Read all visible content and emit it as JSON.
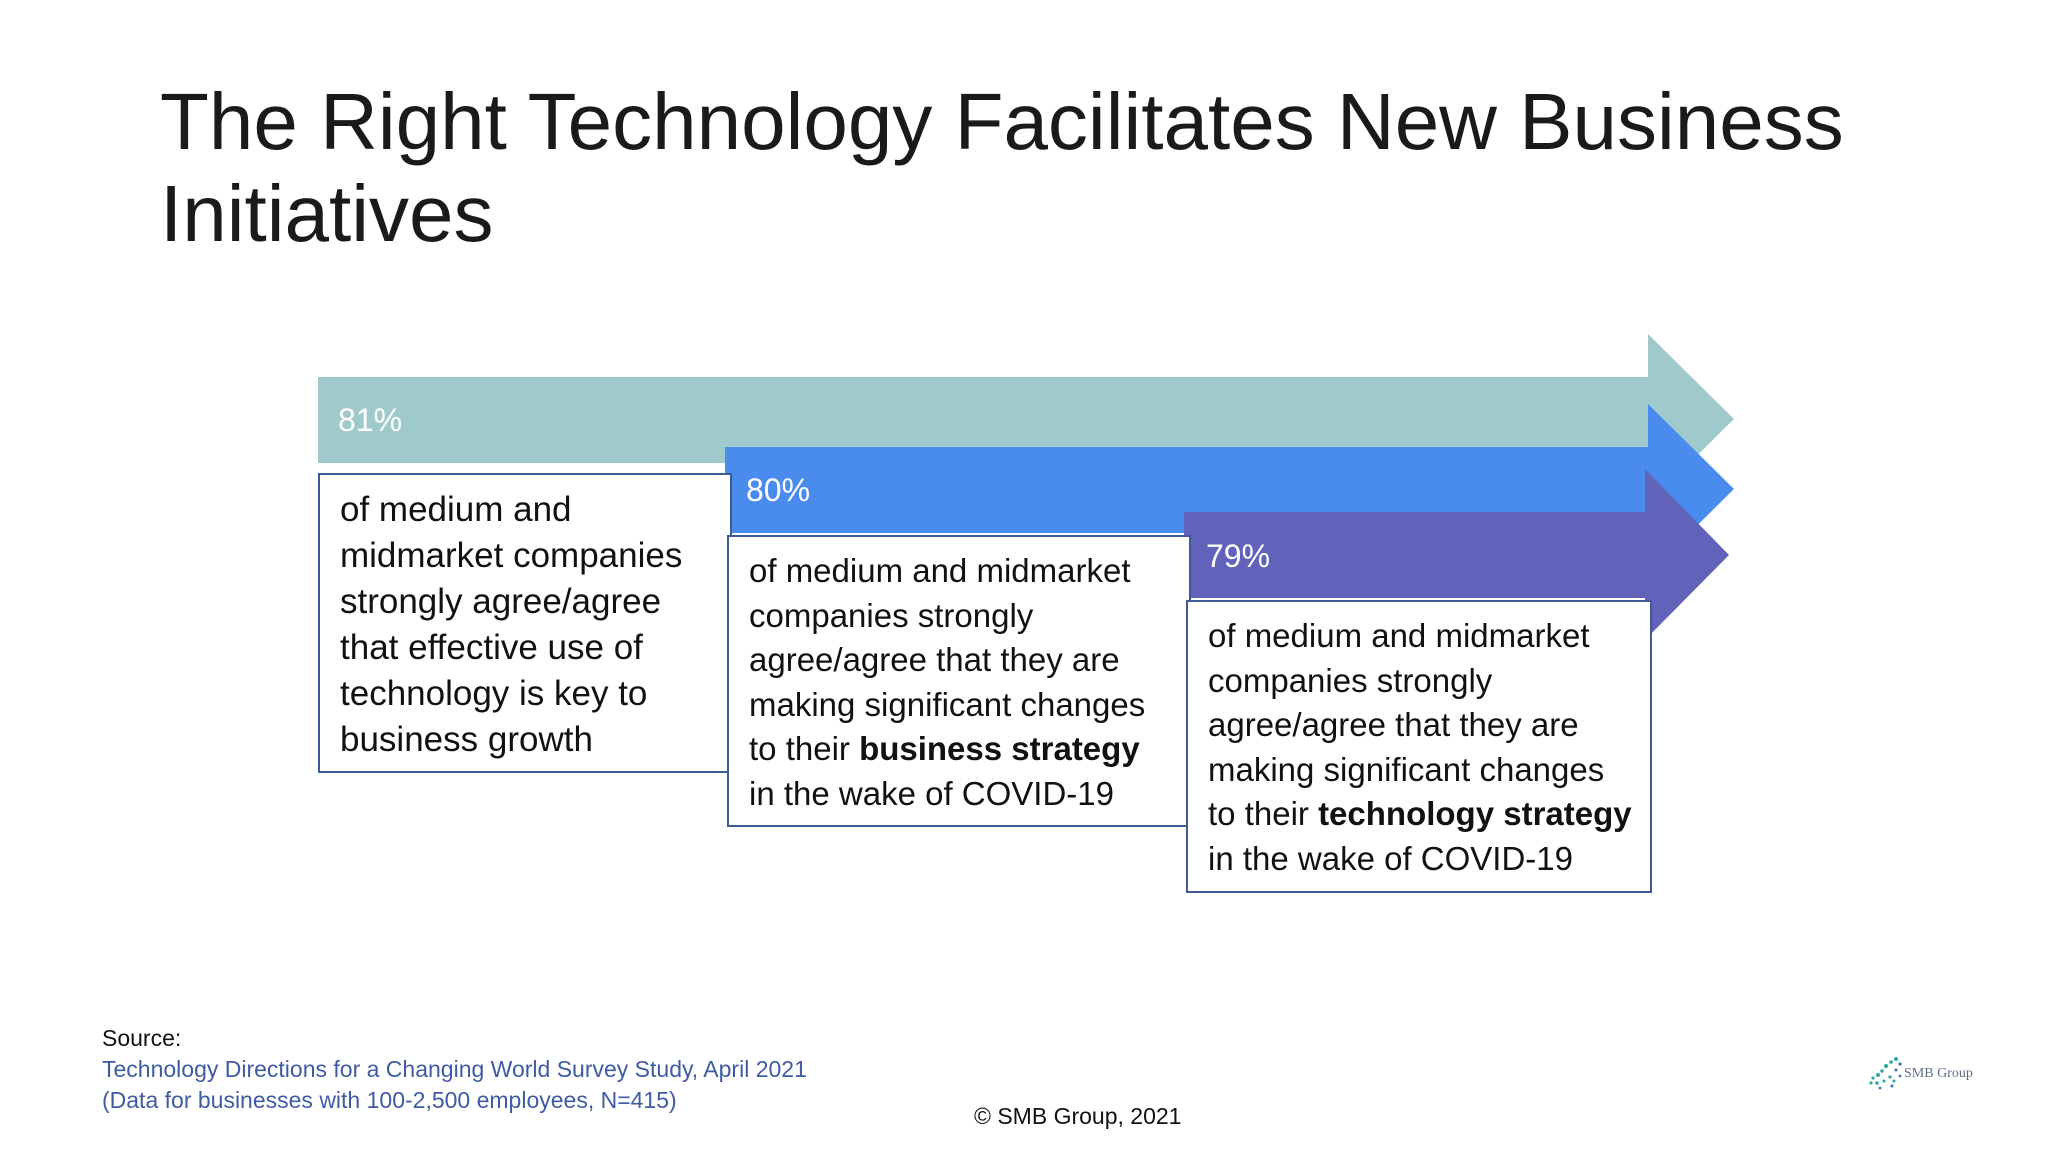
{
  "slide": {
    "title": "The Right Technology Facilitates New Business Initiatives"
  },
  "arrows": [
    {
      "percent": "81%",
      "color": "#9fc9cb",
      "text_parts": [
        {
          "text": "of medium and midmarket companies strongly agree/agree that effective use of technology is key to business growth",
          "bold": false
        }
      ]
    },
    {
      "percent": "80%",
      "color": "#4a8cee",
      "text_parts": [
        {
          "text": "of medium and midmarket companies strongly agree/agree that they are making significant changes to their ",
          "bold": false
        },
        {
          "text": "business strategy",
          "bold": true
        },
        {
          "text": " in the wake of COVID-19",
          "bold": false
        }
      ]
    },
    {
      "percent": "79%",
      "color": "#6063b9",
      "text_parts": [
        {
          "text": "of medium and midmarket companies strongly agree/agree that they are making significant changes to their ",
          "bold": false
        },
        {
          "text": "technology strategy",
          "bold": true
        },
        {
          "text": " in the wake of COVID-19",
          "bold": false
        }
      ]
    }
  ],
  "source": {
    "label": "Source:",
    "line1": "Technology Directions for a Changing World Survey Study, April 2021",
    "line2": "(Data for businesses with 100-2,500 employees, N=415)"
  },
  "footer": {
    "copyright": "© SMB Group, 2021",
    "logo_text": "SMB Group"
  },
  "colors": {
    "box_border": "#3d5a99",
    "source_link": "#3f5ba3"
  }
}
